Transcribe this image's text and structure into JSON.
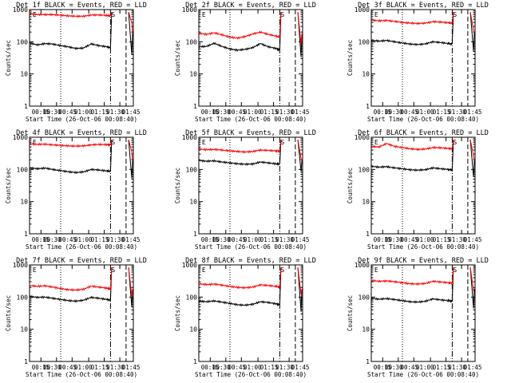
{
  "chart_data": [
    {
      "type": "line",
      "title": "Det 1f BLACK = Events, RED = LLD",
      "xlabel": "Start Time (26-Oct-06 00:08:40)",
      "ylabel": "Counts/sec",
      "yscale": "log",
      "ylim": [
        1,
        1000
      ],
      "xlim": [
        0,
        110
      ],
      "xticks": [
        "00:15",
        "00:30",
        "00:45",
        "01:00",
        "01:15",
        "01:30",
        "01:45"
      ],
      "yticks": [
        "1",
        "10",
        "100",
        "1000"
      ],
      "flags": [
        "E",
        "S"
      ],
      "series": [
        {
          "name": "Events",
          "color": "#000000",
          "x": [
            0,
            10,
            20,
            30,
            40,
            50,
            60,
            70,
            80,
            90,
            100,
            105
          ],
          "y": [
            92,
            80,
            88,
            85,
            76,
            70,
            62,
            64,
            86,
            76,
            70,
            65
          ]
        },
        {
          "name": "LLD",
          "color": "#ff0000",
          "x": [
            0,
            10,
            20,
            30,
            40,
            50,
            60,
            70,
            80,
            90,
            100,
            105
          ],
          "y": [
            760,
            700,
            700,
            700,
            670,
            640,
            620,
            620,
            680,
            680,
            660,
            640
          ]
        }
      ]
    },
    {
      "type": "line",
      "title": "Det 2f BLACK = Events, RED = LLD",
      "xlabel": "Start Time (26-Oct-06 00:08:40)",
      "ylabel": "Counts/sec",
      "yscale": "log",
      "ylim": [
        1,
        1000
      ],
      "xlim": [
        0,
        110
      ],
      "xticks": [
        "00:15",
        "00:30",
        "00:45",
        "01:00",
        "01:15",
        "01:30",
        "01:45"
      ],
      "yticks": [
        "1",
        "10",
        "100",
        "1000"
      ],
      "flags": [
        "E",
        "S"
      ],
      "series": [
        {
          "name": "Events",
          "color": "#000000",
          "x": [
            0,
            10,
            20,
            30,
            40,
            50,
            60,
            70,
            80,
            90,
            100,
            105
          ],
          "y": [
            70,
            72,
            90,
            72,
            60,
            55,
            58,
            66,
            88,
            70,
            62,
            55
          ]
        },
        {
          "name": "LLD",
          "color": "#ff0000",
          "x": [
            0,
            10,
            20,
            30,
            40,
            50,
            60,
            70,
            80,
            90,
            100,
            105
          ],
          "y": [
            185,
            170,
            190,
            165,
            140,
            130,
            145,
            175,
            200,
            170,
            150,
            140
          ]
        }
      ]
    },
    {
      "type": "line",
      "title": "Det 3f BLACK = Events, RED = LLD",
      "xlabel": "Start Time (26-Oct-06 00:08:40)",
      "ylabel": "Counts/sec",
      "yscale": "log",
      "ylim": [
        1,
        1000
      ],
      "xlim": [
        0,
        110
      ],
      "xticks": [
        "00:15",
        "00:30",
        "00:45",
        "01:00",
        "01:15",
        "01:30",
        "01:45"
      ],
      "yticks": [
        "1",
        "10",
        "100",
        "1000"
      ],
      "flags": [
        "E",
        "S"
      ],
      "series": [
        {
          "name": "Events",
          "color": "#000000",
          "x": [
            0,
            10,
            20,
            30,
            40,
            50,
            60,
            70,
            80,
            90,
            100,
            105
          ],
          "y": [
            112,
            105,
            110,
            100,
            92,
            85,
            82,
            86,
            100,
            95,
            88,
            85
          ]
        },
        {
          "name": "LLD",
          "color": "#ff0000",
          "x": [
            0,
            10,
            20,
            30,
            40,
            50,
            60,
            70,
            80,
            90,
            100,
            105
          ],
          "y": [
            470,
            450,
            460,
            430,
            400,
            380,
            370,
            380,
            420,
            410,
            390,
            380
          ]
        }
      ]
    },
    {
      "type": "line",
      "title": "Det 4f BLACK = Events, RED = LLD",
      "xlabel": "Start Time (26-Oct-06 00:08:40)",
      "ylabel": "Counts/sec",
      "yscale": "log",
      "ylim": [
        1,
        1000
      ],
      "xlim": [
        0,
        110
      ],
      "xticks": [
        "00:15",
        "00:30",
        "00:45",
        "01:00",
        "01:15",
        "01:30",
        "01:45"
      ],
      "yticks": [
        "1",
        "10",
        "100",
        "1000"
      ],
      "flags": [
        "E",
        "S"
      ],
      "series": [
        {
          "name": "Events",
          "color": "#000000",
          "x": [
            0,
            10,
            20,
            30,
            40,
            50,
            60,
            70,
            80,
            90,
            100,
            105
          ],
          "y": [
            112,
            105,
            110,
            100,
            92,
            85,
            80,
            84,
            100,
            96,
            90,
            88
          ]
        },
        {
          "name": "LLD",
          "color": "#ff0000",
          "x": [
            0,
            10,
            20,
            30,
            40,
            50,
            60,
            70,
            80,
            90,
            100,
            105
          ],
          "y": [
            630,
            600,
            610,
            580,
            560,
            540,
            530,
            540,
            580,
            600,
            590,
            580
          ]
        }
      ]
    },
    {
      "type": "line",
      "title": "Det 5f BLACK = Events, RED = LLD",
      "xlabel": "Start Time (26-Oct-06 00:08:40)",
      "ylabel": "Counts/sec",
      "yscale": "log",
      "ylim": [
        1,
        1000
      ],
      "xlim": [
        0,
        110
      ],
      "xticks": [
        "00:15",
        "00:30",
        "00:45",
        "01:00",
        "01:15",
        "01:30",
        "01:45"
      ],
      "yticks": [
        "1",
        "10",
        "100",
        "1000"
      ],
      "flags": [
        "E",
        "S"
      ],
      "series": [
        {
          "name": "Events",
          "color": "#000000",
          "x": [
            0,
            10,
            20,
            30,
            40,
            50,
            60,
            70,
            80,
            90,
            100,
            105
          ],
          "y": [
            190,
            180,
            185,
            170,
            160,
            150,
            145,
            148,
            170,
            160,
            150,
            145
          ]
        },
        {
          "name": "LLD",
          "color": "#ff0000",
          "x": [
            0,
            10,
            20,
            30,
            40,
            50,
            60,
            70,
            80,
            90,
            100,
            105
          ],
          "y": [
            430,
            410,
            420,
            400,
            380,
            360,
            350,
            360,
            400,
            390,
            380,
            370
          ]
        }
      ]
    },
    {
      "type": "line",
      "title": "Det 6f BLACK = Events, RED = LLD",
      "xlabel": "Start Time (26-Oct-06 00:08:40)",
      "ylabel": "Counts/sec",
      "yscale": "log",
      "ylim": [
        1,
        1000
      ],
      "xlim": [
        0,
        110
      ],
      "xticks": [
        "00:15",
        "00:30",
        "00:45",
        "01:00",
        "01:15",
        "01:30",
        "01:45"
      ],
      "yticks": [
        "1",
        "10",
        "100",
        "1000"
      ],
      "flags": [
        "E",
        "S"
      ],
      "series": [
        {
          "name": "Events",
          "color": "#000000",
          "x": [
            0,
            10,
            20,
            30,
            40,
            50,
            60,
            70,
            80,
            90,
            100,
            105
          ],
          "y": [
            125,
            118,
            122,
            112,
            105,
            98,
            95,
            98,
            112,
            105,
            100,
            96
          ]
        },
        {
          "name": "LLD",
          "color": "#ff0000",
          "x": [
            0,
            10,
            20,
            30,
            40,
            50,
            60,
            70,
            80,
            90,
            100,
            105
          ],
          "y": [
            520,
            500,
            640,
            520,
            480,
            440,
            420,
            430,
            480,
            470,
            450,
            440
          ]
        }
      ]
    },
    {
      "type": "line",
      "title": "Det 7f BLACK = Events, RED = LLD",
      "xlabel": "Start Time (26-Oct-06 00:08:40)",
      "ylabel": "Counts/sec",
      "yscale": "log",
      "ylim": [
        1,
        1000
      ],
      "xlim": [
        0,
        110
      ],
      "xticks": [
        "00:15",
        "00:30",
        "00:45",
        "01:00",
        "01:15",
        "01:30",
        "01:45"
      ],
      "yticks": [
        "1",
        "10",
        "100",
        "1000"
      ],
      "flags": [
        "E",
        "S"
      ],
      "series": [
        {
          "name": "Events",
          "color": "#000000",
          "x": [
            0,
            10,
            20,
            30,
            40,
            50,
            60,
            70,
            80,
            90,
            100,
            105
          ],
          "y": [
            105,
            98,
            100,
            92,
            85,
            78,
            75,
            80,
            98,
            92,
            85,
            80
          ]
        },
        {
          "name": "LLD",
          "color": "#ff0000",
          "x": [
            0,
            10,
            20,
            30,
            40,
            50,
            60,
            70,
            80,
            90,
            100,
            105
          ],
          "y": [
            230,
            215,
            225,
            205,
            185,
            170,
            165,
            175,
            220,
            205,
            190,
            180
          ]
        }
      ]
    },
    {
      "type": "line",
      "title": "Det 8f BLACK = Events, RED = LLD",
      "xlabel": "Start Time (26-Oct-06 00:08:40)",
      "ylabel": "Counts/sec",
      "yscale": "log",
      "ylim": [
        1,
        1000
      ],
      "xlim": [
        0,
        110
      ],
      "xticks": [
        "00:15",
        "00:30",
        "00:45",
        "01:00",
        "01:15",
        "01:30",
        "01:45"
      ],
      "yticks": [
        "1",
        "10",
        "100",
        "1000"
      ],
      "flags": [
        "E",
        "S"
      ],
      "series": [
        {
          "name": "Events",
          "color": "#000000",
          "x": [
            0,
            10,
            20,
            30,
            40,
            50,
            60,
            70,
            80,
            90,
            100,
            105
          ],
          "y": [
            75,
            72,
            76,
            70,
            64,
            58,
            56,
            60,
            72,
            68,
            62,
            58
          ]
        },
        {
          "name": "LLD",
          "color": "#ff0000",
          "x": [
            0,
            10,
            20,
            30,
            40,
            50,
            60,
            70,
            80,
            90,
            100,
            105
          ],
          "y": [
            260,
            245,
            255,
            235,
            215,
            200,
            195,
            205,
            240,
            230,
            215,
            205
          ]
        }
      ]
    },
    {
      "type": "line",
      "title": "Det 9f BLACK = Events, RED = LLD",
      "xlabel": "Start Time (26-Oct-06 00:08:40)",
      "ylabel": "Counts/sec",
      "yscale": "log",
      "ylim": [
        1,
        1000
      ],
      "xlim": [
        0,
        110
      ],
      "xticks": [
        "00:15",
        "00:30",
        "00:45",
        "01:00",
        "01:15",
        "01:30",
        "01:45"
      ],
      "yticks": [
        "1",
        "10",
        "100",
        "1000"
      ],
      "flags": [
        "E",
        "S"
      ],
      "series": [
        {
          "name": "Events",
          "color": "#000000",
          "x": [
            0,
            10,
            20,
            30,
            40,
            50,
            60,
            70,
            80,
            90,
            100,
            105
          ],
          "y": [
            92,
            86,
            90,
            84,
            78,
            72,
            70,
            74,
            88,
            82,
            78,
            74
          ]
        },
        {
          "name": "LLD",
          "color": "#ff0000",
          "x": [
            0,
            10,
            20,
            30,
            40,
            50,
            60,
            70,
            80,
            90,
            100,
            105
          ],
          "y": [
            330,
            310,
            320,
            300,
            280,
            260,
            255,
            265,
            310,
            295,
            280,
            270
          ]
        }
      ]
    }
  ]
}
